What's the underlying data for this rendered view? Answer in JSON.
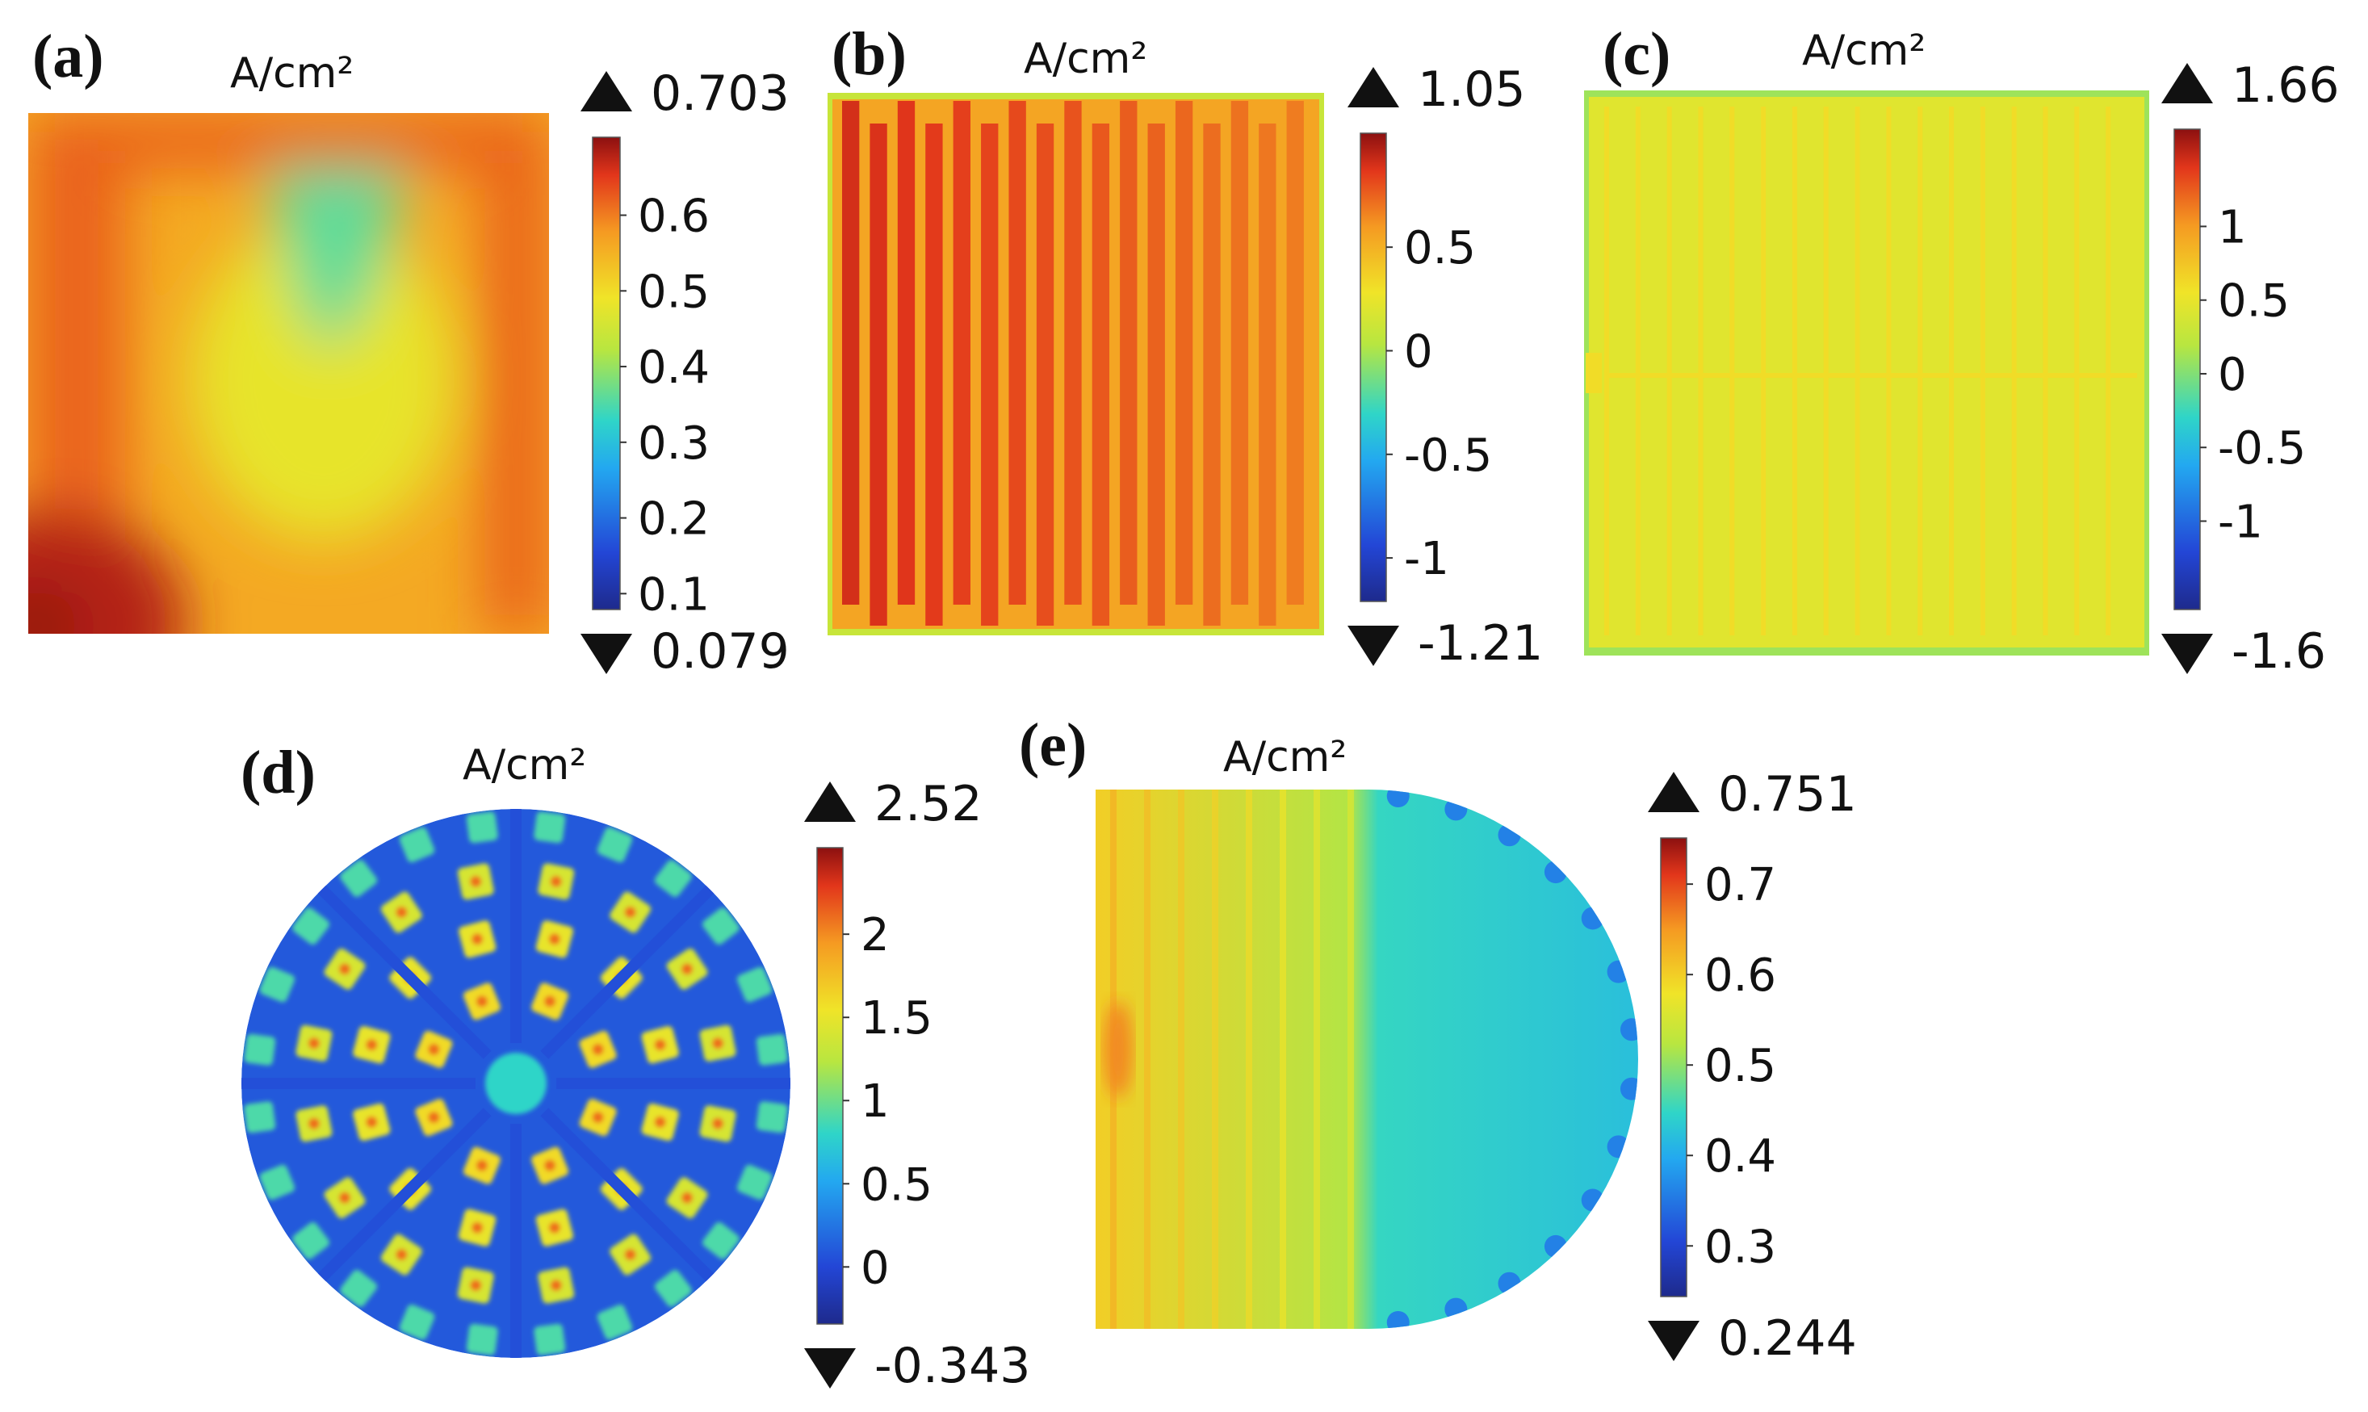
{
  "chart_data": [
    {
      "type": "heatmap",
      "panel": "(a)",
      "title": "A/cm²",
      "colorbar": {
        "max": "0.703",
        "min": "0.079",
        "vmin": 0.079,
        "vmax": 0.703,
        "ticks": [
          0.6,
          0.5,
          0.4,
          0.3,
          0.2,
          0.1
        ],
        "tick_labels": [
          "0.6",
          "0.5",
          "0.4",
          "0.3",
          "0.2",
          "0.1"
        ]
      },
      "shape": "square",
      "field": {
        "base": 0.56,
        "corner_value": 0.68,
        "center_value": 0.36,
        "edge_value": 0.62
      }
    },
    {
      "type": "heatmap",
      "panel": "(b)",
      "title": "A/cm²",
      "colorbar": {
        "max": "1.05",
        "min": "-1.21",
        "vmin": -1.21,
        "vmax": 1.05,
        "ticks": [
          0.5,
          0,
          -0.5,
          -1
        ],
        "tick_labels": [
          "0.5",
          "0",
          "-0.5",
          "-1"
        ]
      },
      "shape": "interdigitated channels",
      "channel_count": 17,
      "field": {
        "left_value": 0.9,
        "right_value": 0.68,
        "rib_value": 0.55,
        "border_value": 0.1
      }
    },
    {
      "type": "heatmap",
      "panel": "(c)",
      "title": "A/cm²",
      "colorbar": {
        "max": "1.66",
        "min": "-1.6",
        "vmin": -1.6,
        "vmax": 1.66,
        "ticks": [
          1,
          0.5,
          0,
          -0.5,
          -1
        ],
        "tick_labels": [
          "1",
          "0.5",
          "0",
          "-0.5",
          "-1"
        ]
      },
      "shape": "parallel channels",
      "channel_count": 17,
      "field": {
        "base": 0.45,
        "rib_value": 0.6,
        "border_value": 0.1
      }
    },
    {
      "type": "heatmap",
      "panel": "(d)",
      "title": "A/cm²",
      "colorbar": {
        "max": "2.52",
        "min": "-0.343",
        "vmin": -0.343,
        "vmax": 2.52,
        "ticks": [
          2,
          1.5,
          1,
          0.5,
          0
        ],
        "tick_labels": [
          "2",
          "1.5",
          "1",
          "0.5",
          "0"
        ]
      },
      "shape": "circular radial pins",
      "rings": [
        {
          "count": 8,
          "value": 1.6
        },
        {
          "count": 12,
          "value": 1.5
        },
        {
          "count": 16,
          "value": 1.4
        },
        {
          "count": 24,
          "value": 0.9
        }
      ],
      "field": {
        "background_value": 0.1,
        "center_value": 0.8
      }
    },
    {
      "type": "heatmap",
      "panel": "(e)",
      "title": "A/cm²",
      "colorbar": {
        "max": "0.751",
        "min": "0.244",
        "vmin": 0.244,
        "vmax": 0.751,
        "ticks": [
          0.7,
          0.6,
          0.5,
          0.4,
          0.3
        ],
        "tick_labels": [
          "0.7",
          "0.6",
          "0.5",
          "0.4",
          "0.3"
        ]
      },
      "shape": "rectangle with semicircle",
      "field": {
        "left_value": 0.6,
        "mid_value": 0.52,
        "right_value": 0.42
      }
    }
  ]
}
